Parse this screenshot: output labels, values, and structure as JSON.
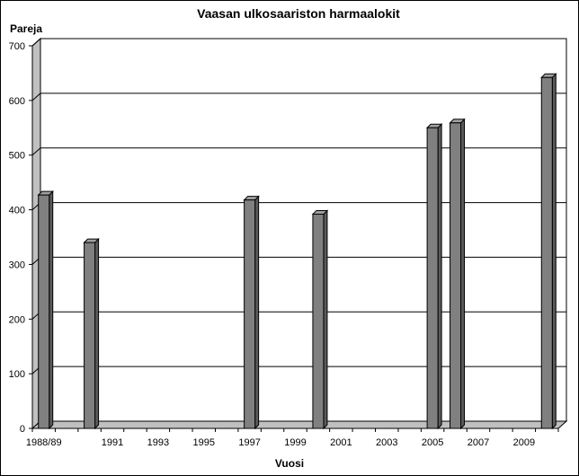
{
  "chart_data": {
    "type": "bar",
    "title": "Vaasan ulkosaariston harmaalokit",
    "xlabel": "Vuosi",
    "ylabel": "Pareja",
    "ylim": [
      0,
      700
    ],
    "yticks": [
      0,
      100,
      200,
      300,
      400,
      500,
      600,
      700
    ],
    "grid": true,
    "x_tick_labels": [
      "1988/89",
      "1991",
      "1993",
      "1995",
      "1997",
      "1999",
      "2001",
      "2003",
      "2005",
      "2007",
      "2009"
    ],
    "categories": [
      "1988/89",
      "1990",
      "1997",
      "2000",
      "2005",
      "2006",
      "2010"
    ],
    "values": [
      427,
      340,
      418,
      392,
      550,
      559,
      642
    ],
    "bar_color": "#808080",
    "wall_color": "#c0c0c0"
  }
}
